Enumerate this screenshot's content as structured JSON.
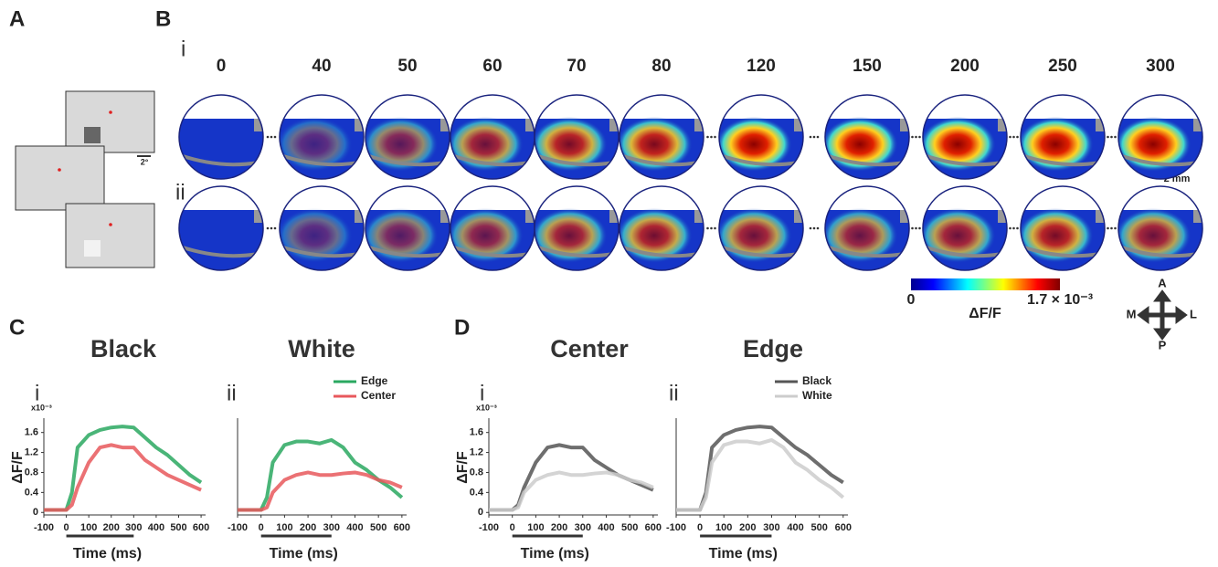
{
  "panel_labels": [
    "A",
    "B",
    "C",
    "D"
  ],
  "panel_a": {
    "scale_label": "2°"
  },
  "panel_b": {
    "row_labels": [
      "i",
      "ii"
    ],
    "times": [
      0,
      40,
      50,
      60,
      70,
      80,
      120,
      150,
      200,
      250,
      300
    ],
    "scale_label": "2 mm",
    "colorbar": {
      "min_label": "0",
      "max_label": "1.7 × 10⁻³",
      "label": "ΔF/F"
    },
    "compass": {
      "anterior": "A",
      "posterior": "P",
      "medial": "M",
      "lateral": "L"
    }
  },
  "chart_data": [
    {
      "type": "line",
      "title": "Black",
      "panel": "i",
      "y_scale_label": "x10⁻³",
      "ylabel": "ΔF/F",
      "xlabel": "Time (ms)",
      "x": [
        -100,
        -50,
        0,
        25,
        50,
        100,
        150,
        200,
        250,
        300,
        350,
        400,
        450,
        500,
        550,
        600
      ],
      "series": [
        {
          "name": "Edge",
          "color": "#2aa860",
          "values": [
            0.05,
            0.05,
            0.05,
            0.4,
            1.3,
            1.55,
            1.65,
            1.7,
            1.72,
            1.7,
            1.5,
            1.3,
            1.15,
            0.95,
            0.75,
            0.6
          ]
        },
        {
          "name": "Center",
          "color": "#e8585c",
          "values": [
            0.05,
            0.05,
            0.05,
            0.15,
            0.5,
            1.0,
            1.3,
            1.35,
            1.3,
            1.3,
            1.05,
            0.9,
            0.75,
            0.65,
            0.55,
            0.45
          ]
        }
      ],
      "stimulus": [
        0,
        300
      ],
      "legend": false,
      "xlim": [
        -100,
        620
      ],
      "ylim": [
        -0.05,
        1.85
      ],
      "xticks": [
        -100,
        0,
        100,
        200,
        300,
        400,
        500,
        600
      ],
      "yticks": [
        0,
        0.4,
        0.8,
        1.2,
        1.6
      ]
    },
    {
      "type": "line",
      "title": "White",
      "panel": "ii",
      "xlabel": "Time (ms)",
      "x": [
        -100,
        -50,
        0,
        25,
        50,
        100,
        150,
        200,
        250,
        300,
        350,
        400,
        450,
        500,
        550,
        600
      ],
      "series": [
        {
          "name": "Edge",
          "color": "#2aa860",
          "values": [
            0.05,
            0.05,
            0.05,
            0.3,
            1.0,
            1.35,
            1.42,
            1.42,
            1.38,
            1.45,
            1.3,
            1.0,
            0.85,
            0.65,
            0.5,
            0.3
          ]
        },
        {
          "name": "Center",
          "color": "#e8585c",
          "values": [
            0.05,
            0.05,
            0.05,
            0.1,
            0.4,
            0.65,
            0.75,
            0.8,
            0.75,
            0.75,
            0.78,
            0.8,
            0.75,
            0.65,
            0.6,
            0.5
          ]
        }
      ],
      "stimulus": [
        0,
        300
      ],
      "legend": true,
      "xlim": [
        -100,
        620
      ],
      "ylim": [
        -0.05,
        1.85
      ],
      "xticks": [
        -100,
        0,
        100,
        200,
        300,
        400,
        500,
        600
      ]
    },
    {
      "type": "line",
      "title": "Center",
      "panel": "i",
      "y_scale_label": "x10⁻³",
      "ylabel": "ΔF/F",
      "xlabel": "Time (ms)",
      "x": [
        -100,
        -50,
        0,
        25,
        50,
        100,
        150,
        200,
        250,
        300,
        350,
        400,
        450,
        500,
        550,
        600
      ],
      "series": [
        {
          "name": "Black",
          "color": "#555555",
          "values": [
            0.05,
            0.05,
            0.05,
            0.15,
            0.5,
            1.0,
            1.3,
            1.35,
            1.3,
            1.3,
            1.05,
            0.9,
            0.75,
            0.65,
            0.55,
            0.45
          ]
        },
        {
          "name": "White",
          "color": "#cccccc",
          "values": [
            0.05,
            0.05,
            0.05,
            0.1,
            0.4,
            0.65,
            0.75,
            0.8,
            0.75,
            0.75,
            0.78,
            0.8,
            0.75,
            0.65,
            0.6,
            0.5
          ]
        }
      ],
      "stimulus": [
        0,
        300
      ],
      "legend": false,
      "xlim": [
        -100,
        620
      ],
      "ylim": [
        -0.05,
        1.85
      ],
      "xticks": [
        -100,
        0,
        100,
        200,
        300,
        400,
        500,
        600
      ],
      "yticks": [
        0,
        0.4,
        0.8,
        1.2,
        1.6
      ]
    },
    {
      "type": "line",
      "title": "Edge",
      "panel": "ii",
      "xlabel": "Time (ms)",
      "x": [
        -100,
        -50,
        0,
        25,
        50,
        100,
        150,
        200,
        250,
        300,
        350,
        400,
        450,
        500,
        550,
        600
      ],
      "series": [
        {
          "name": "Black",
          "color": "#555555",
          "values": [
            0.05,
            0.05,
            0.05,
            0.4,
            1.3,
            1.55,
            1.65,
            1.7,
            1.72,
            1.7,
            1.5,
            1.3,
            1.15,
            0.95,
            0.75,
            0.6
          ]
        },
        {
          "name": "White",
          "color": "#cccccc",
          "values": [
            0.05,
            0.05,
            0.05,
            0.3,
            1.0,
            1.35,
            1.42,
            1.42,
            1.38,
            1.45,
            1.3,
            1.0,
            0.85,
            0.65,
            0.5,
            0.3
          ]
        }
      ],
      "stimulus": [
        0,
        300
      ],
      "legend": true,
      "xlim": [
        -100,
        620
      ],
      "ylim": [
        -0.05,
        1.85
      ],
      "xticks": [
        -100,
        0,
        100,
        200,
        300,
        400,
        500,
        600
      ]
    }
  ]
}
